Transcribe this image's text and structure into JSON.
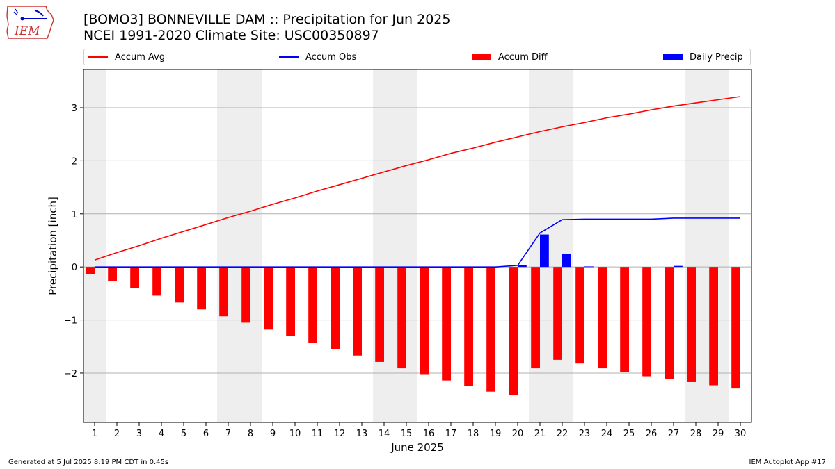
{
  "header": {
    "title_line1": "[BOMO3] BONNEVILLE DAM :: Precipitation for Jun 2025",
    "title_line2": "NCEI 1991-2020 Climate Site: USC00350897",
    "logo_text": "IEM"
  },
  "footer": {
    "generated": "Generated at 5 Jul 2025 8:19 PM CDT in 0.45s",
    "app": "IEM Autoplot App #17"
  },
  "legend": {
    "accum_avg": "Accum Avg",
    "accum_obs": "Accum Obs",
    "accum_diff": "Accum Diff",
    "daily_precip": "Daily Precip"
  },
  "colors": {
    "accum_avg": "#ff0000",
    "accum_obs": "#0000ff",
    "accum_diff": "#ff0000",
    "daily_precip": "#0000ff",
    "weekend_shade": "#eeeeee",
    "grid": "#b0b0b0"
  },
  "chart_data": {
    "type": "bar",
    "xlabel": "June 2025",
    "ylabel": "Precipitation [inch]",
    "ylim": [
      -2.93,
      3.72
    ],
    "xlim": [
      0.5,
      30.5
    ],
    "yticks": [
      3,
      2,
      1,
      0,
      -1,
      -2
    ],
    "ytick_labels": [
      "3",
      "2",
      "1",
      "0",
      "−1",
      "−2"
    ],
    "grid": "horizontal",
    "legend_placement": "top",
    "days": [
      1,
      2,
      3,
      4,
      5,
      6,
      7,
      8,
      9,
      10,
      11,
      12,
      13,
      14,
      15,
      16,
      17,
      18,
      19,
      20,
      21,
      22,
      23,
      24,
      25,
      26,
      27,
      28,
      29,
      30
    ],
    "shaded_days": [
      1,
      7,
      8,
      14,
      15,
      21,
      22,
      28,
      29
    ],
    "series": [
      {
        "name": "Accum Avg",
        "kind": "line",
        "values": [
          0.13,
          0.27,
          0.4,
          0.54,
          0.67,
          0.8,
          0.93,
          1.05,
          1.18,
          1.3,
          1.43,
          1.55,
          1.67,
          1.79,
          1.91,
          2.02,
          2.14,
          2.24,
          2.35,
          2.45,
          2.55,
          2.64,
          2.72,
          2.81,
          2.88,
          2.96,
          3.03,
          3.09,
          3.15,
          3.21
        ]
      },
      {
        "name": "Accum Obs",
        "kind": "line",
        "values": [
          0,
          0,
          0,
          0,
          0,
          0,
          0,
          0,
          0,
          0,
          0,
          0,
          0,
          0,
          0,
          0,
          0,
          0,
          0,
          0.03,
          0.64,
          0.89,
          0.9,
          0.9,
          0.9,
          0.9,
          0.92,
          0.92,
          0.92,
          0.92
        ]
      },
      {
        "name": "Accum Diff",
        "kind": "bar",
        "values": [
          -0.13,
          -0.27,
          -0.4,
          -0.54,
          -0.67,
          -0.8,
          -0.93,
          -1.05,
          -1.18,
          -1.3,
          -1.43,
          -1.55,
          -1.67,
          -1.79,
          -1.91,
          -2.02,
          -2.14,
          -2.24,
          -2.35,
          -2.42,
          -1.91,
          -1.75,
          -1.82,
          -1.91,
          -1.98,
          -2.06,
          -2.11,
          -2.17,
          -2.23,
          -2.29
        ]
      },
      {
        "name": "Daily Precip",
        "kind": "bar",
        "values": [
          0,
          0,
          0,
          0,
          0,
          0,
          0,
          0,
          0,
          0,
          0,
          0,
          0,
          0,
          0,
          0,
          0,
          0,
          0,
          0.03,
          0.61,
          0.25,
          0.01,
          0,
          0,
          0,
          0.02,
          0,
          0,
          0
        ]
      }
    ]
  }
}
